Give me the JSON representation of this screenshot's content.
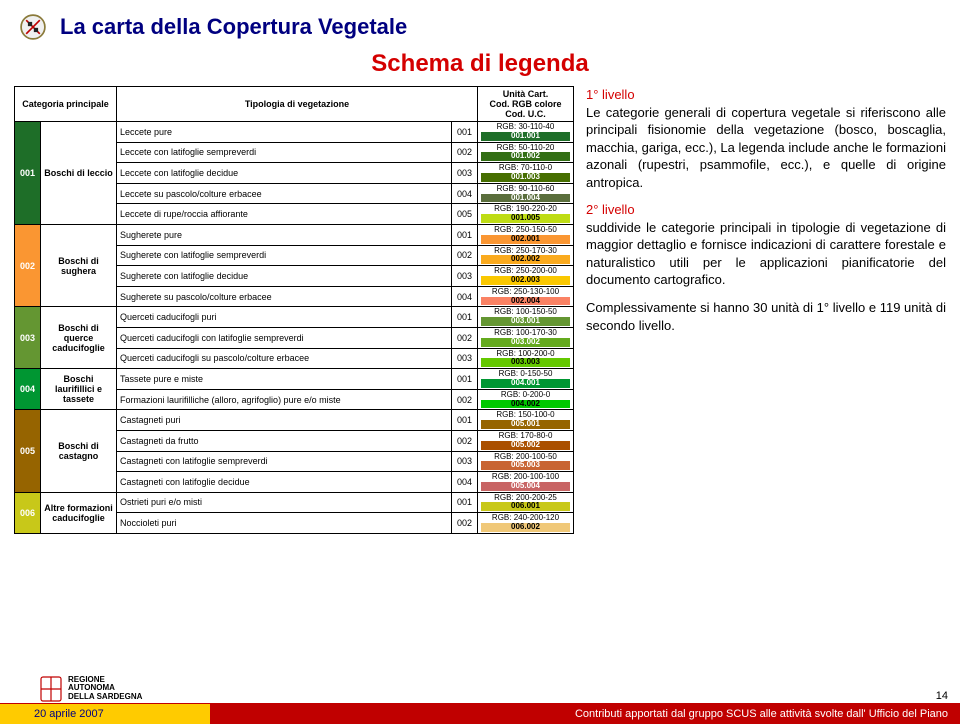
{
  "header": {
    "title": "La carta della Copertura Vegetale",
    "subtitle": "Schema di legenda",
    "subtitle_color": "#d40000"
  },
  "table": {
    "headers": {
      "category": "Categoria principale",
      "vegetation": "Tipologia di vegetazione",
      "unit": "Unità Cart.\nCod. RGB colore\nCod. U.C."
    },
    "categories": [
      {
        "code": "001",
        "name": "Boschi di leccio",
        "cat_color": "#1e6e28",
        "rows": [
          {
            "veg": "Leccete pure",
            "vcode": "001",
            "rgb": "RGB: 30-110-40",
            "swatch": "#1e6e28",
            "ucode": "001.001",
            "dark": false
          },
          {
            "veg": "Leccete con latifoglie sempreverdi",
            "vcode": "002",
            "rgb": "RGB: 50-110-20",
            "swatch": "#326e14",
            "ucode": "001.002",
            "dark": false
          },
          {
            "veg": "Leccete con latifoglie decidue",
            "vcode": "003",
            "rgb": "RGB: 70-110-0",
            "swatch": "#466e00",
            "ucode": "001.003",
            "dark": false
          },
          {
            "veg": "Leccete su pascolo/colture erbacee",
            "vcode": "004",
            "rgb": "RGB: 90-110-60",
            "swatch": "#5a6e3c",
            "ucode": "001.004",
            "dark": false
          },
          {
            "veg": "Leccete di rupe/roccia affiorante",
            "vcode": "005",
            "rgb": "RGB: 190-220-20",
            "swatch": "#bedc14",
            "ucode": "001.005",
            "dark": true
          }
        ]
      },
      {
        "code": "002",
        "name": "Boschi di sughera",
        "cat_color": "#fa9632",
        "rows": [
          {
            "veg": "Sugherete pure",
            "vcode": "001",
            "rgb": "RGB: 250-150-50",
            "swatch": "#fa9632",
            "ucode": "002.001",
            "dark": true
          },
          {
            "veg": "Sugherete con latifoglie sempreverdi",
            "vcode": "002",
            "rgb": "RGB: 250-170-30",
            "swatch": "#faaa1e",
            "ucode": "002.002",
            "dark": true
          },
          {
            "veg": "Sugherete con latifoglie decidue",
            "vcode": "003",
            "rgb": "RGB: 250-200-00",
            "swatch": "#fac800",
            "ucode": "002.003",
            "dark": true
          },
          {
            "veg": "Sugherete su pascolo/colture erbacee",
            "vcode": "004",
            "rgb": "RGB: 250-130-100",
            "swatch": "#fa8264",
            "ucode": "002.004",
            "dark": true
          }
        ]
      },
      {
        "code": "003",
        "name": "Boschi di querce caducifoglie",
        "cat_color": "#649632",
        "rows": [
          {
            "veg": "Querceti caducifogli puri",
            "vcode": "001",
            "rgb": "RGB: 100-150-50",
            "swatch": "#649632",
            "ucode": "003.001",
            "dark": false
          },
          {
            "veg": "Querceti caducifogli con latifoglie sempreverdi",
            "vcode": "002",
            "rgb": "RGB: 100-170-30",
            "swatch": "#64aa1e",
            "ucode": "003.002",
            "dark": false
          },
          {
            "veg": "Querceti caducifogli su pascolo/colture erbacee",
            "vcode": "003",
            "rgb": "RGB: 100-200-0",
            "swatch": "#64c800",
            "ucode": "003.003",
            "dark": true
          }
        ]
      },
      {
        "code": "004",
        "name": "Boschi laurifillici e tassete",
        "cat_color": "#009632",
        "rows": [
          {
            "veg": "Tassete pure e miste",
            "vcode": "001",
            "rgb": "RGB: 0-150-50",
            "swatch": "#009632",
            "ucode": "004.001",
            "dark": false
          },
          {
            "veg": "Formazioni laurifilliche (alloro, agrifoglio) pure e/o miste",
            "vcode": "002",
            "rgb": "RGB: 0-200-0",
            "swatch": "#00c800",
            "ucode": "004.002",
            "dark": true
          }
        ]
      },
      {
        "code": "005",
        "name": "Boschi di castagno",
        "cat_color": "#966400",
        "rows": [
          {
            "veg": "Castagneti puri",
            "vcode": "001",
            "rgb": "RGB: 150-100-0",
            "swatch": "#966400",
            "ucode": "005.001",
            "dark": false
          },
          {
            "veg": "Castagneti da frutto",
            "vcode": "002",
            "rgb": "RGB: 170-80-0",
            "swatch": "#aa5000",
            "ucode": "005.002",
            "dark": false
          },
          {
            "veg": "Castagneti con latifoglie sempreverdi",
            "vcode": "003",
            "rgb": "RGB: 200-100-50",
            "swatch": "#c86432",
            "ucode": "005.003",
            "dark": false
          },
          {
            "veg": "Castagneti con latifoglie decidue",
            "vcode": "004",
            "rgb": "RGB: 200-100-100",
            "swatch": "#c86464",
            "ucode": "005.004",
            "dark": false
          }
        ]
      },
      {
        "code": "006",
        "name": "Altre formazioni caducifoglie",
        "cat_color": "#c8c819",
        "rows": [
          {
            "veg": "Ostrieti puri e/o misti",
            "vcode": "001",
            "rgb": "RGB: 200-200-25",
            "swatch": "#c8c819",
            "ucode": "006.001",
            "dark": true
          },
          {
            "veg": "Noccioleti puri",
            "vcode": "002",
            "rgb": "RGB: 240-200-120",
            "swatch": "#f0c878",
            "ucode": "006.002",
            "dark": true
          }
        ]
      }
    ]
  },
  "text": {
    "l1_label": "1° livello",
    "l1_body": "Le categorie generali di copertura vegetale si riferiscono alle principali fisionomie della vegetazione (bosco, boscaglia, macchia, gariga, ecc.), La legenda include anche le formazioni azonali (rupestri, psammofile, ecc.), e quelle di origine antropica.",
    "l2_label": "2° livello",
    "l2_body": "suddivide le categorie principali in tipologie di vegetazione di maggior dettaglio e fornisce indicazioni di carattere forestale e naturalistico utili per le applicazioni pianificatorie del documento cartografico.",
    "summary": "Complessivamente si hanno 30 unità di 1° livello e 119 unità di secondo livello."
  },
  "footer": {
    "region": "REGIONE\nAUTONOMA\nDELLA SARDEGNA",
    "date": "20 aprile 2007",
    "caption": "Contributi apportati dal gruppo SCUS alle attività svolte dall' Ufficio del Piano",
    "page": "14",
    "emblem_colors": {
      "stroke": "#c00000",
      "fill": "#ffcb00"
    }
  }
}
